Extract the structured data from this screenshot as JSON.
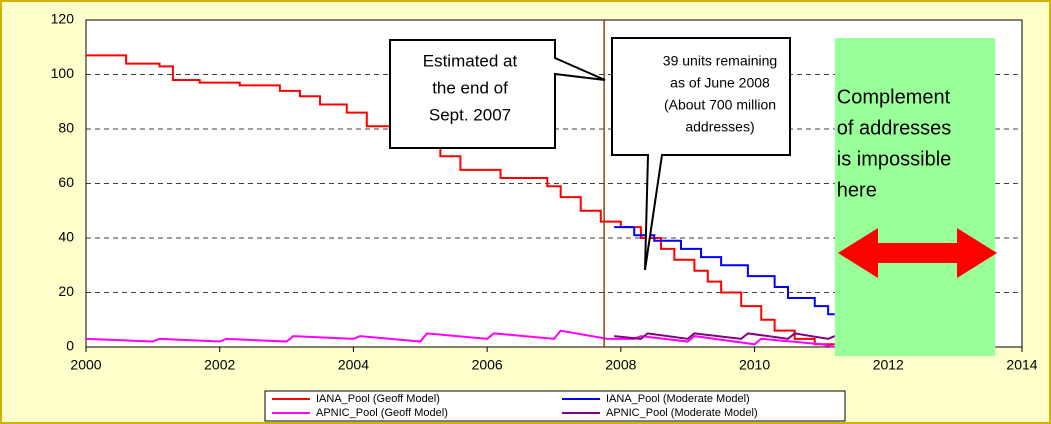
{
  "chart_data": {
    "type": "line",
    "xlim": [
      2000,
      2014
    ],
    "xticks": [
      2000,
      2002,
      2004,
      2006,
      2008,
      2010,
      2012,
      2014
    ],
    "ylim": [
      0,
      120
    ],
    "yticks": [
      0,
      20,
      40,
      60,
      80,
      100,
      120
    ],
    "grid": true,
    "legend": "bottom",
    "series": [
      {
        "name": "IANA_Pool (Geoff Model)",
        "color": "#ff0000",
        "x": [
          2000,
          2000.6,
          2000.6,
          2001.1,
          2001.1,
          2001.3,
          2001.3,
          2001.7,
          2001.7,
          2002.3,
          2002.3,
          2002.9,
          2002.9,
          2003.2,
          2003.2,
          2003.5,
          2003.5,
          2003.9,
          2003.9,
          2004.2,
          2004.2,
          2004.7,
          2004.7,
          2005.0,
          2005.0,
          2005.3,
          2005.3,
          2005.6,
          2005.6,
          2006.2,
          2006.2,
          2006.9,
          2006.9,
          2007.1,
          2007.1,
          2007.4,
          2007.4,
          2007.7,
          2007.7,
          2008.0,
          2008.0,
          2008.3,
          2008.3,
          2008.6,
          2008.6,
          2008.8,
          2008.8,
          2009.1,
          2009.1,
          2009.3,
          2009.3,
          2009.5,
          2009.5,
          2009.8,
          2009.8,
          2010.1,
          2010.1,
          2010.3,
          2010.3,
          2010.6,
          2010.6,
          2010.9,
          2010.9,
          2011.2
        ],
        "values": [
          107,
          107,
          104,
          104,
          103,
          103,
          98,
          98,
          97,
          97,
          96,
          96,
          94,
          94,
          92,
          92,
          89,
          89,
          86,
          86,
          81,
          81,
          79,
          79,
          75,
          75,
          70,
          70,
          65,
          65,
          62,
          62,
          59,
          59,
          55,
          55,
          50,
          50,
          46,
          46,
          44,
          44,
          40,
          40,
          36,
          36,
          32,
          32,
          28,
          28,
          24,
          24,
          20,
          20,
          15,
          15,
          10,
          10,
          6,
          6,
          3,
          3,
          1,
          1
        ]
      },
      {
        "name": "IANA_Pool (Moderate Model)",
        "color": "#0000ff",
        "x": [
          2007.9,
          2008.2,
          2008.2,
          2008.5,
          2008.5,
          2008.9,
          2008.9,
          2009.2,
          2009.2,
          2009.5,
          2009.5,
          2009.9,
          2009.9,
          2010.3,
          2010.3,
          2010.5,
          2010.5,
          2010.9,
          2010.9,
          2011.1,
          2011.1,
          2011.2
        ],
        "values": [
          44,
          44,
          41,
          41,
          39,
          39,
          36,
          36,
          33,
          33,
          30,
          30,
          26,
          26,
          22,
          22,
          18,
          18,
          15,
          15,
          12,
          12
        ]
      },
      {
        "name": "APNIC_Pool (Geoff Model)",
        "color": "#ff00ff",
        "x": [
          2000,
          2001,
          2001.1,
          2002,
          2002.1,
          2003,
          2003.1,
          2004,
          2004.1,
          2005,
          2005.1,
          2006,
          2006.1,
          2007,
          2007.1,
          2007.8,
          2008.2,
          2008.3,
          2009,
          2009.1,
          2010,
          2010.1,
          2011,
          2011.2
        ],
        "values": [
          3,
          2,
          3,
          2,
          3,
          2,
          4,
          3,
          4,
          2,
          5,
          3,
          5,
          3,
          6,
          3,
          3,
          4,
          2,
          4,
          1,
          3,
          1,
          0
        ]
      },
      {
        "name": "APNIC_Pool (Moderate Model)",
        "color": "#800080",
        "x": [
          2007.9,
          2008.3,
          2008.4,
          2009,
          2009.1,
          2009.8,
          2009.9,
          2010.5,
          2010.6,
          2011.1,
          2011.2
        ],
        "values": [
          4,
          3,
          5,
          3,
          5,
          3,
          5,
          3,
          5,
          3,
          4
        ]
      }
    ],
    "reference_line": {
      "x": 2007.75,
      "color": "#8b4513"
    },
    "shaded_region": {
      "x": [
        2011.2,
        2013.6
      ],
      "color": "#99ff99"
    },
    "annotations": [
      {
        "lines": [
          "Estimated at",
          "the end of",
          "Sept. 2007"
        ]
      },
      {
        "lines": [
          "39 units remaining",
          "as of June 2008",
          "(About 700 million",
          "addresses)"
        ]
      },
      {
        "lines": [
          "Complement",
          "of addresses",
          "is impossible",
          "here"
        ]
      }
    ]
  }
}
